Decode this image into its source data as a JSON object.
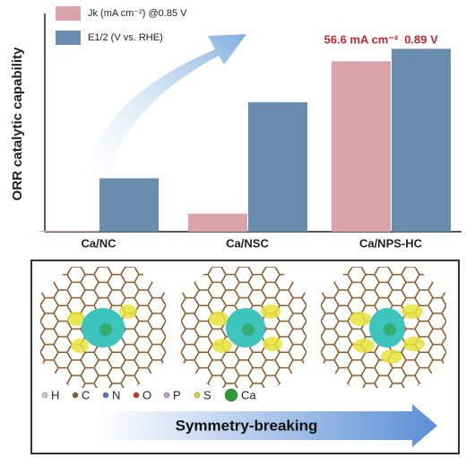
{
  "chart_data": {
    "type": "bar",
    "y_axis_label": "ORR catalytic capability",
    "categories": [
      "Ca/NC",
      "Ca/NSC",
      "Ca/NPS-HC"
    ],
    "ylim": [
      0,
      71
    ],
    "y2lim": [
      0,
      1.04
    ],
    "series": [
      {
        "name": "Jk (mA cm⁻²) @0.85 V",
        "color": "#d9a3a9",
        "values": [
          0.3,
          6.0,
          56.6
        ],
        "value_labels": [
          null,
          null,
          "56.6 mA cm⁻²"
        ]
      },
      {
        "name": "E1/2 (V vs. RHE)",
        "color": "#6a8cae",
        "axis": "y2",
        "values": [
          0.26,
          0.63,
          0.89
        ],
        "value_labels": [
          null,
          null,
          "0.89 V"
        ]
      }
    ]
  },
  "panel": {
    "elements": [
      "H",
      "C",
      "N",
      "O",
      "P",
      "S",
      "Ca"
    ],
    "arrow_label": "Symmetry-breaking"
  }
}
